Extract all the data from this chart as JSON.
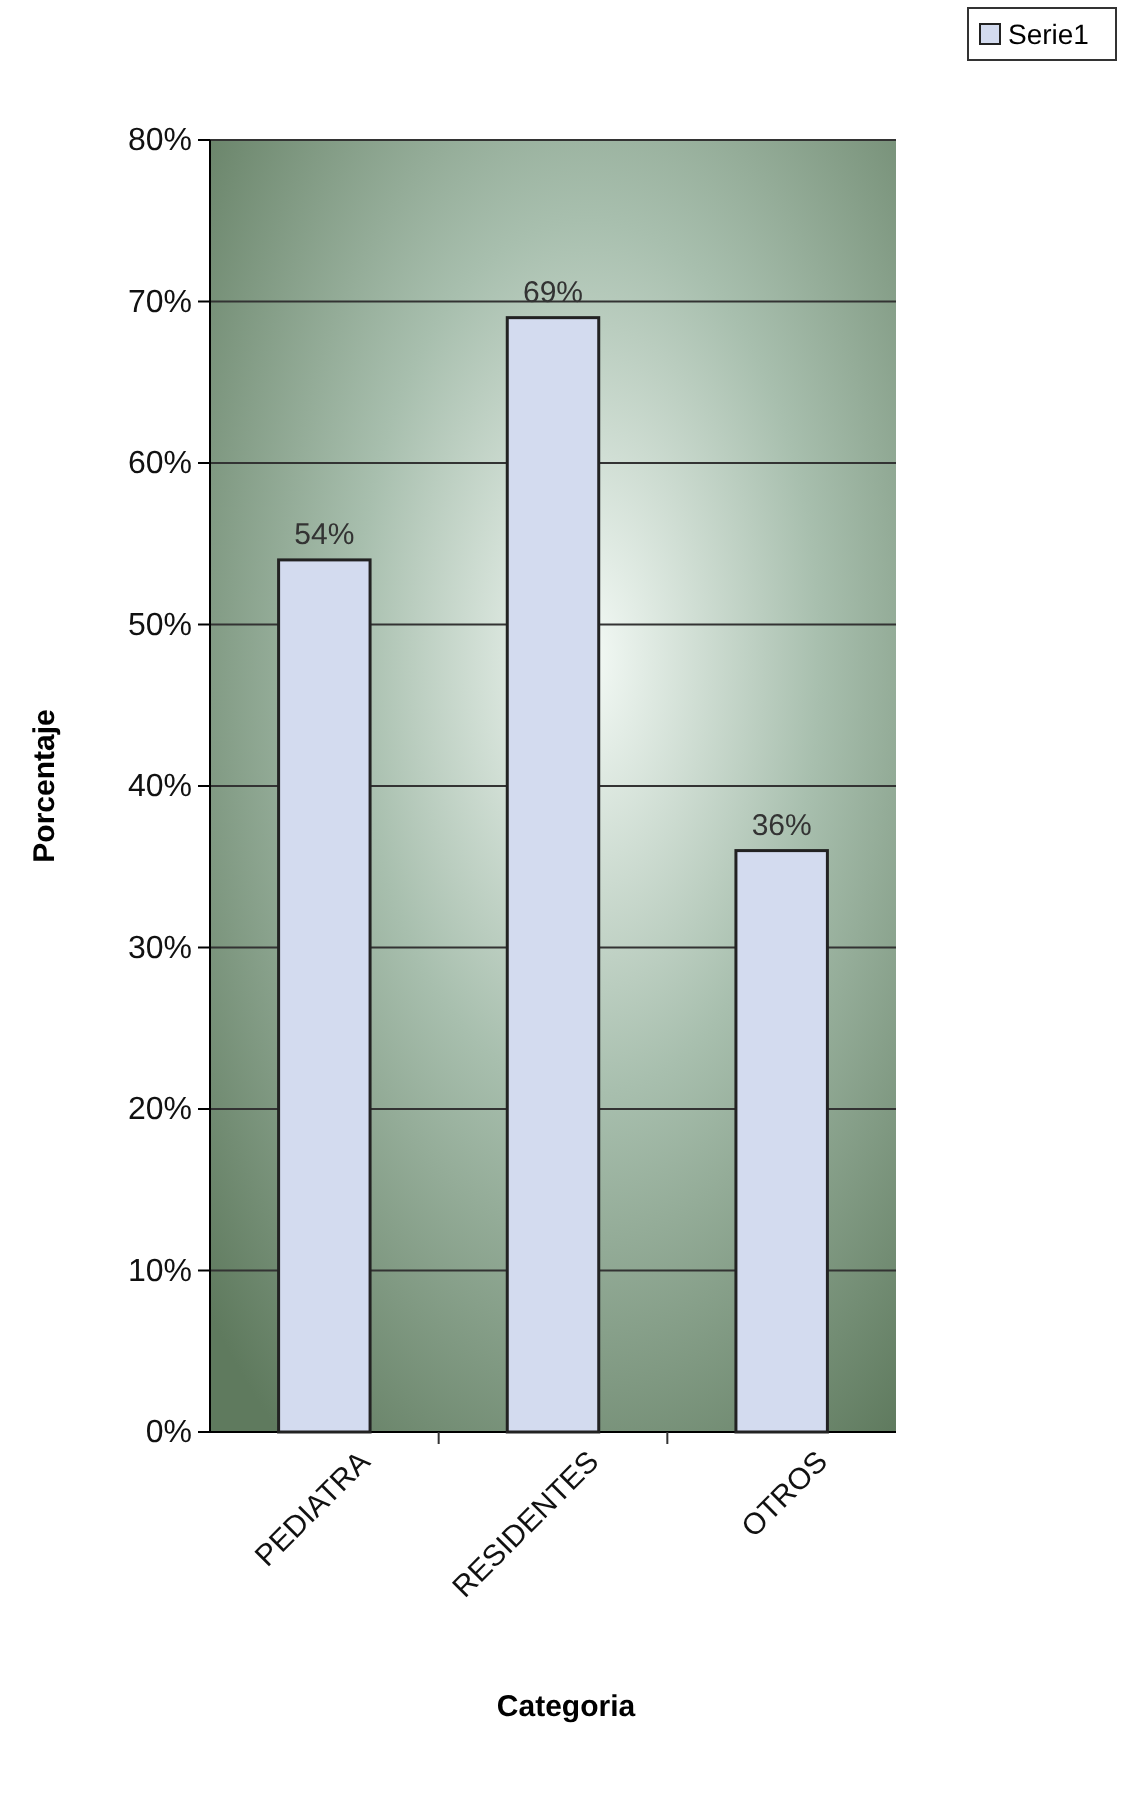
{
  "chart_data": {
    "type": "bar",
    "xlabel": "Categoria",
    "ylabel": "Porcentaje",
    "categories": [
      "PEDIATRA",
      "RESIDENTES",
      "OTROS"
    ],
    "series": [
      {
        "name": "Serie1",
        "color": "#d3dbef",
        "values": [
          54,
          69,
          36
        ],
        "value_labels": [
          "54%",
          "69%",
          "36%"
        ]
      }
    ],
    "ylim": [
      0,
      80
    ],
    "yticks": [
      {
        "value": 0,
        "label": "0%"
      },
      {
        "value": 10,
        "label": "10%"
      },
      {
        "value": 20,
        "label": "20%"
      },
      {
        "value": 30,
        "label": "30%"
      },
      {
        "value": 40,
        "label": "40%"
      },
      {
        "value": 50,
        "label": "50%"
      },
      {
        "value": 60,
        "label": "60%"
      },
      {
        "value": 70,
        "label": "70%"
      },
      {
        "value": 80,
        "label": "80%"
      }
    ],
    "grid": "y",
    "legend": "top right"
  }
}
